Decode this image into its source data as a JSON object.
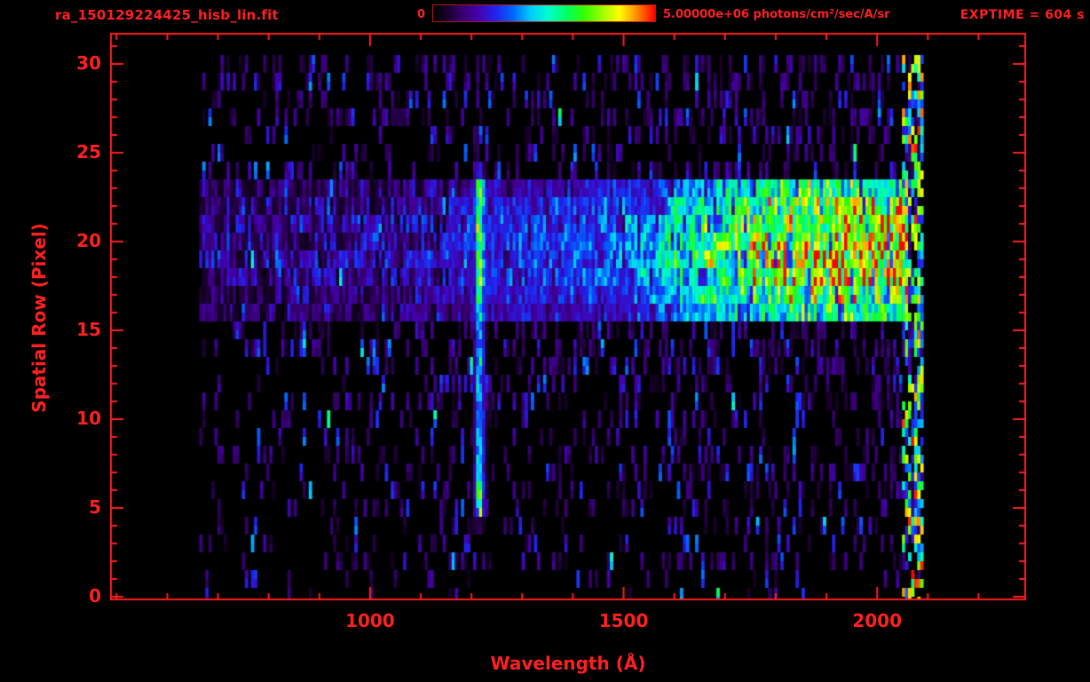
{
  "window": {
    "background_color": "#000000",
    "accent_color": "#ff2020"
  },
  "header": {
    "filename": "ra_150129224425_hisb_lin.fit",
    "exptime_label": "EXPTIME = 604 s",
    "colorbar": {
      "min_label": "0",
      "max_label": "5.00000e+06 photons/cm²/sec/A/sr"
    }
  },
  "chart_data": {
    "type": "heatmap",
    "title": "ra_150129224425_hisb_lin.fit",
    "xlabel": "Wavelength (Å)",
    "ylabel": "Spatial Row (Pixel)",
    "x_ticks": [
      1000,
      1500,
      2000
    ],
    "x_minor_tick_step": 100,
    "y_ticks": [
      0,
      5,
      10,
      15,
      20,
      25,
      30
    ],
    "y_minor_tick_step": 1,
    "x_axis_range": [
      489,
      2292
    ],
    "y_axis_range": [
      -0.15,
      31.7
    ],
    "colorbar": {
      "min": 0,
      "max": 5000000,
      "min_label": "0",
      "max_label": "5.00000e+06 photons/cm²/sec/A/sr",
      "units": "photons/cm²/sec/A/sr"
    },
    "exposure_time_s": 604,
    "colormap_stops": [
      [
        0.0,
        "#000000"
      ],
      [
        0.06,
        "#160028"
      ],
      [
        0.13,
        "#36006e"
      ],
      [
        0.2,
        "#4400aa"
      ],
      [
        0.28,
        "#2222ee"
      ],
      [
        0.36,
        "#0066ff"
      ],
      [
        0.44,
        "#00ccff"
      ],
      [
        0.52,
        "#00ffcc"
      ],
      [
        0.6,
        "#00ff66"
      ],
      [
        0.68,
        "#33ff00"
      ],
      [
        0.76,
        "#99ff00"
      ],
      [
        0.84,
        "#ffff00"
      ],
      [
        0.92,
        "#ff8800"
      ],
      [
        1.0,
        "#ff0000"
      ]
    ],
    "data_model": {
      "seed": 20150129,
      "wavelength_range": [
        663,
        2086
      ],
      "wavelength_bin": 6,
      "rows": 31,
      "row_noise_amplitude": [
        0.06,
        0.14,
        0.26,
        0.3,
        0.26,
        0.3,
        0.34,
        0.3,
        0.34,
        0.32,
        0.36,
        0.46,
        0.36,
        0.46,
        0.42,
        0.48,
        0.55,
        0.6,
        0.62,
        0.65,
        0.65,
        0.62,
        0.6,
        0.55,
        0.42,
        0.32,
        0.36,
        0.32,
        0.38,
        0.44,
        0.48
      ],
      "noise_gradient": [
        0.75,
        1.35
      ],
      "speckle_dot_probability": 0.004,
      "band": {
        "rows_start": 16,
        "profile": [
          0.68,
          0.85,
          0.95,
          1.0,
          1.0,
          0.97,
          0.9,
          0.72
        ],
        "spectral_ramp": [
          [
            663,
            0.2
          ],
          [
            900,
            0.24
          ],
          [
            1150,
            0.26
          ],
          [
            1350,
            0.3
          ],
          [
            1500,
            0.36
          ],
          [
            1600,
            0.5
          ],
          [
            1700,
            0.65
          ],
          [
            1800,
            0.76
          ],
          [
            1900,
            0.82
          ],
          [
            2048,
            0.85
          ]
        ],
        "sparse_below_wavelength": 1150,
        "cutoff_wavelength": 2056
      },
      "emission_line": {
        "center": 1216,
        "sigma": 7,
        "row_strength": [
          0,
          0,
          0,
          0,
          0.1,
          0.6,
          0.62,
          0.52,
          0.48,
          0.46,
          0.5,
          0.46,
          0.44,
          0.46,
          0.44,
          0.5,
          0.72,
          0.72,
          0.72,
          0.73,
          0.73,
          0.73,
          0.72,
          0.72,
          0.35,
          0.02,
          0,
          0,
          0,
          0,
          0
        ]
      },
      "right_edge_burst": {
        "range": [
          2048,
          2086
        ],
        "probability": 0.45,
        "strong_range": [
          2068,
          2086
        ],
        "strong_probability": 0.7
      }
    }
  }
}
